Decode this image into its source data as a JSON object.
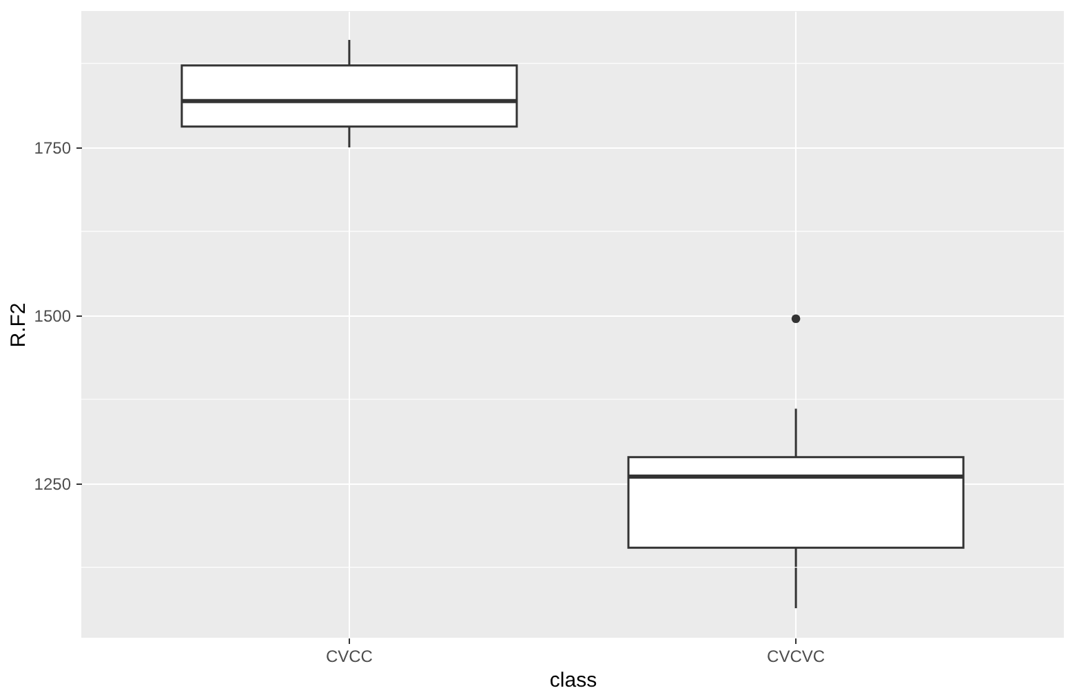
{
  "chart_data": {
    "type": "box",
    "xlabel": "class",
    "ylabel": "R.F2",
    "categories": [
      "CVCC",
      "CVCVC"
    ],
    "boxes": [
      {
        "low": 1750,
        "q1": 1781,
        "median": 1819,
        "q3": 1872,
        "high": 1910
      },
      {
        "low": 1064,
        "q1": 1154,
        "median": 1260,
        "q3": 1289,
        "high": 1361,
        "outliers": [
          1495
        ]
      }
    ],
    "ylim": [
      1020,
      1953
    ],
    "yticks": [
      {
        "value": 1125,
        "label": null
      },
      1250,
      {
        "value": 1375,
        "label": null
      },
      1500,
      {
        "value": 1625,
        "label": null
      },
      1750,
      {
        "value": 1875,
        "label": null
      }
    ],
    "grid": true
  }
}
